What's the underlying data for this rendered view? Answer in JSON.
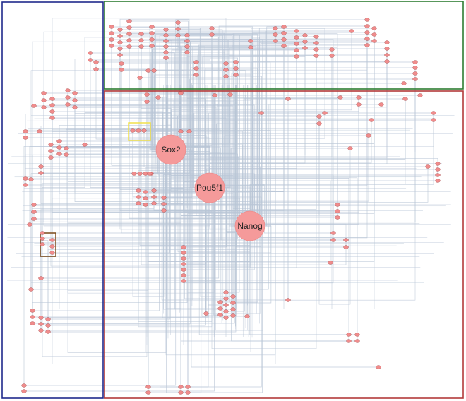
{
  "hubs": [
    {
      "id": "sox2",
      "label": "Sox2"
    },
    {
      "id": "pou5f1",
      "label": "Pou5f1"
    },
    {
      "id": "nanog",
      "label": "Nanog"
    }
  ],
  "colors": {
    "background": "#ffffff",
    "edge": "#b9c6d6",
    "node_fill": "#f08c8c",
    "node_stroke": "#b05050",
    "hub_fill": "#f59a9a",
    "region_left": "#1f2a8c",
    "region_top": "#2e7d32",
    "region_main": "#b23a3a",
    "highlight_yellow": "#f2e14a",
    "highlight_brown": "#7a4a1a"
  }
}
